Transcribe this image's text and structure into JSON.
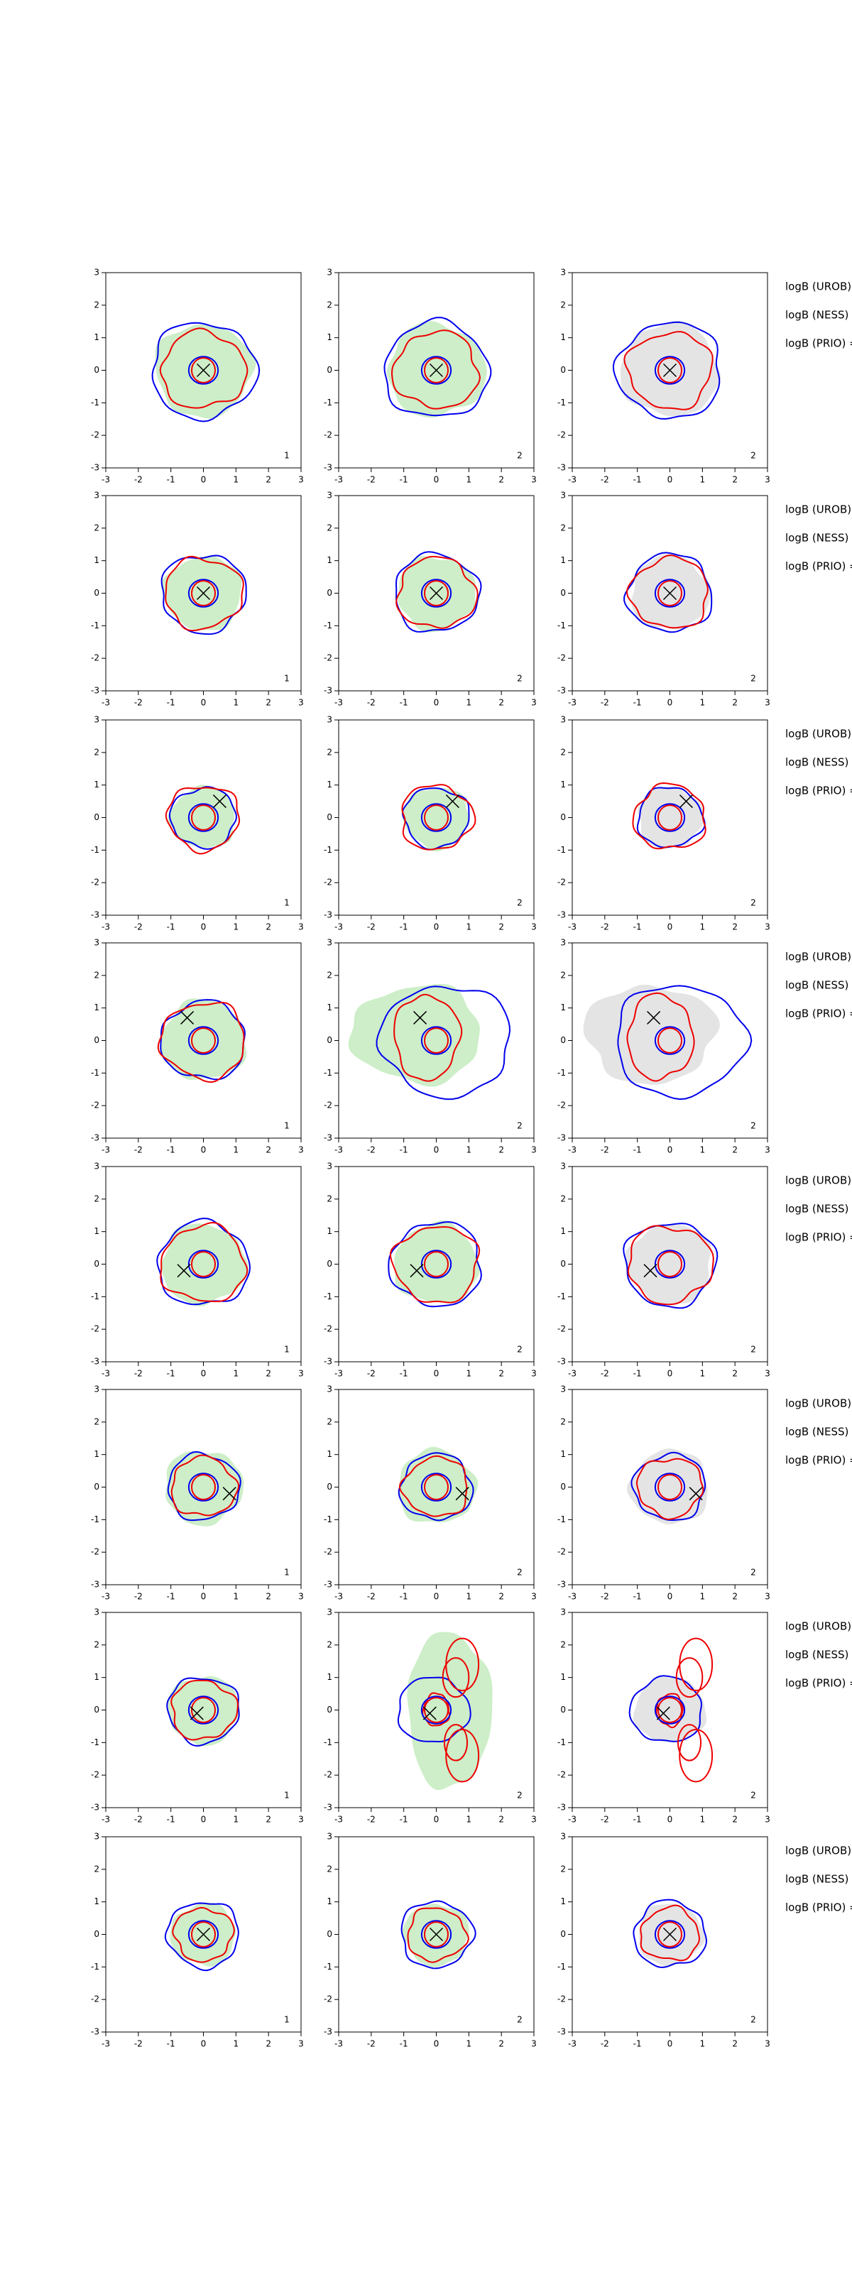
{
  "chart_data": [
    {
      "type": "contour",
      "panel_label": "1",
      "xlim": [
        -3,
        3
      ],
      "ylim": [
        -3,
        3
      ],
      "xticks": [
        -3,
        -2,
        -1,
        0,
        1,
        2,
        3
      ],
      "yticks": [
        -3,
        -2,
        -1,
        0,
        1,
        2,
        3
      ],
      "marker": {
        "x": 0,
        "y": 0
      }
    },
    {
      "type": "contour",
      "panel_label": "2",
      "xlim": [
        -3,
        3
      ],
      "ylim": [
        -3,
        3
      ],
      "xticks": [
        -3,
        -2,
        -1,
        0,
        1,
        2,
        3
      ],
      "yticks": [
        -3,
        -2,
        -1,
        0,
        1,
        2,
        3
      ],
      "marker": {
        "x": 0,
        "y": 0
      }
    },
    {
      "type": "contour",
      "panel_label": "2",
      "xlim": [
        -3,
        3
      ],
      "ylim": [
        -3,
        3
      ],
      "xticks": [
        -3,
        -2,
        -1,
        0,
        1,
        2,
        3
      ],
      "yticks": [
        -3,
        -2,
        -1,
        0,
        1,
        2,
        3
      ],
      "marker": {
        "x": 0,
        "y": 0
      },
      "annotations": [
        "logB (UROB)",
        "logB (NESS) =",
        "logB (PRIO) ="
      ]
    },
    {
      "type": "contour",
      "panel_label": "1",
      "xlim": [
        -3,
        3
      ],
      "ylim": [
        -3,
        3
      ],
      "xticks": [
        -3,
        -2,
        -1,
        0,
        1,
        2,
        3
      ],
      "yticks": [
        -3,
        -2,
        -1,
        0,
        1,
        2,
        3
      ],
      "marker": {
        "x": 0,
        "y": 0
      }
    },
    {
      "type": "contour",
      "panel_label": "2",
      "xlim": [
        -3,
        3
      ],
      "ylim": [
        -3,
        3
      ],
      "xticks": [
        -3,
        -2,
        -1,
        0,
        1,
        2,
        3
      ],
      "yticks": [
        -3,
        -2,
        -1,
        0,
        1,
        2,
        3
      ],
      "marker": {
        "x": 0,
        "y": 0
      }
    },
    {
      "type": "contour",
      "panel_label": "2",
      "xlim": [
        -3,
        3
      ],
      "ylim": [
        -3,
        3
      ],
      "xticks": [
        -3,
        -2,
        -1,
        0,
        1,
        2,
        3
      ],
      "yticks": [
        -3,
        -2,
        -1,
        0,
        1,
        2,
        3
      ],
      "marker": {
        "x": 0,
        "y": 0
      },
      "annotations": [
        "logB (UROB)",
        "logB (NESS) =",
        "logB (PRIO) ="
      ]
    },
    {
      "type": "contour",
      "panel_label": "1",
      "xlim": [
        -3,
        3
      ],
      "ylim": [
        -3,
        3
      ],
      "xticks": [
        -3,
        -2,
        -1,
        0,
        1,
        2,
        3
      ],
      "yticks": [
        -3,
        -2,
        -1,
        0,
        1,
        2,
        3
      ],
      "marker": {
        "x": 0.5,
        "y": 0.5
      }
    },
    {
      "type": "contour",
      "panel_label": "2",
      "xlim": [
        -3,
        3
      ],
      "ylim": [
        -3,
        3
      ],
      "xticks": [
        -3,
        -2,
        -1,
        0,
        1,
        2,
        3
      ],
      "yticks": [
        -3,
        -2,
        -1,
        0,
        1,
        2,
        3
      ],
      "marker": {
        "x": 0.5,
        "y": 0.5
      }
    },
    {
      "type": "contour",
      "panel_label": "2",
      "xlim": [
        -3,
        3
      ],
      "ylim": [
        -3,
        3
      ],
      "xticks": [
        -3,
        -2,
        -1,
        0,
        1,
        2,
        3
      ],
      "yticks": [
        -3,
        -2,
        -1,
        0,
        1,
        2,
        3
      ],
      "marker": {
        "x": 0.5,
        "y": 0.5
      },
      "annotations": [
        "logB (UROB)",
        "logB (NESS) =",
        "logB (PRIO) ="
      ]
    },
    {
      "type": "contour",
      "panel_label": "1",
      "xlim": [
        -3,
        3
      ],
      "ylim": [
        -3,
        3
      ],
      "xticks": [
        -3,
        -2,
        -1,
        0,
        1,
        2,
        3
      ],
      "yticks": [
        -3,
        -2,
        -1,
        0,
        1,
        2,
        3
      ],
      "marker": {
        "x": -0.5,
        "y": 0.7
      }
    },
    {
      "type": "contour",
      "panel_label": "2",
      "xlim": [
        -3,
        3
      ],
      "ylim": [
        -3,
        3
      ],
      "xticks": [
        -3,
        -2,
        -1,
        0,
        1,
        2,
        3
      ],
      "yticks": [
        -3,
        -2,
        -1,
        0,
        1,
        2,
        3
      ],
      "marker": {
        "x": -0.5,
        "y": 0.7
      }
    },
    {
      "type": "contour",
      "panel_label": "2",
      "xlim": [
        -3,
        3
      ],
      "ylim": [
        -3,
        3
      ],
      "xticks": [
        -3,
        -2,
        -1,
        0,
        1,
        2,
        3
      ],
      "yticks": [
        -3,
        -2,
        -1,
        0,
        1,
        2,
        3
      ],
      "marker": {
        "x": -0.5,
        "y": 0.7
      },
      "annotations": [
        "logB (UROB)",
        "logB (NESS) =",
        "logB (PRIO) ="
      ]
    },
    {
      "type": "contour",
      "panel_label": "1",
      "xlim": [
        -3,
        3
      ],
      "ylim": [
        -3,
        3
      ],
      "xticks": [
        -3,
        -2,
        -1,
        0,
        1,
        2,
        3
      ],
      "yticks": [
        -3,
        -2,
        -1,
        0,
        1,
        2,
        3
      ],
      "marker": {
        "x": -0.6,
        "y": -0.2
      }
    },
    {
      "type": "contour",
      "panel_label": "2",
      "xlim": [
        -3,
        3
      ],
      "ylim": [
        -3,
        3
      ],
      "xticks": [
        -3,
        -2,
        -1,
        0,
        1,
        2,
        3
      ],
      "yticks": [
        -3,
        -2,
        -1,
        0,
        1,
        2,
        3
      ],
      "marker": {
        "x": -0.6,
        "y": -0.2
      }
    },
    {
      "type": "contour",
      "panel_label": "2",
      "xlim": [
        -3,
        3
      ],
      "ylim": [
        -3,
        3
      ],
      "xticks": [
        -3,
        -2,
        -1,
        0,
        1,
        2,
        3
      ],
      "yticks": [
        -3,
        -2,
        -1,
        0,
        1,
        2,
        3
      ],
      "marker": {
        "x": -0.6,
        "y": -0.2
      },
      "annotations": [
        "logB (UROB)",
        "logB (NESS) =",
        "logB (PRIO) ="
      ]
    },
    {
      "type": "contour",
      "panel_label": "1",
      "xlim": [
        -3,
        3
      ],
      "ylim": [
        -3,
        3
      ],
      "xticks": [
        -3,
        -2,
        -1,
        0,
        1,
        2,
        3
      ],
      "yticks": [
        -3,
        -2,
        -1,
        0,
        1,
        2,
        3
      ],
      "marker": {
        "x": 0.8,
        "y": -0.2
      }
    },
    {
      "type": "contour",
      "panel_label": "2",
      "xlim": [
        -3,
        3
      ],
      "ylim": [
        -3,
        3
      ],
      "xticks": [
        -3,
        -2,
        -1,
        0,
        1,
        2,
        3
      ],
      "yticks": [
        -3,
        -2,
        -1,
        0,
        1,
        2,
        3
      ],
      "marker": {
        "x": 0.8,
        "y": -0.2
      }
    },
    {
      "type": "contour",
      "panel_label": "2",
      "xlim": [
        -3,
        3
      ],
      "ylim": [
        -3,
        3
      ],
      "xticks": [
        -3,
        -2,
        -1,
        0,
        1,
        2,
        3
      ],
      "yticks": [
        -3,
        -2,
        -1,
        0,
        1,
        2,
        3
      ],
      "marker": {
        "x": 0.8,
        "y": -0.2
      },
      "annotations": [
        "logB (UROB)",
        "logB (NESS) =",
        "logB (PRIO) ="
      ]
    },
    {
      "type": "contour",
      "panel_label": "1",
      "xlim": [
        -3,
        3
      ],
      "ylim": [
        -3,
        3
      ],
      "xticks": [
        -3,
        -2,
        -1,
        0,
        1,
        2,
        3
      ],
      "yticks": [
        -3,
        -2,
        -1,
        0,
        1,
        2,
        3
      ],
      "marker": {
        "x": -0.2,
        "y": -0.1
      }
    },
    {
      "type": "contour",
      "panel_label": "2",
      "xlim": [
        -3,
        3
      ],
      "ylim": [
        -3,
        3
      ],
      "xticks": [
        -3,
        -2,
        -1,
        0,
        1,
        2,
        3
      ],
      "yticks": [
        -3,
        -2,
        -1,
        0,
        1,
        2,
        3
      ],
      "marker": {
        "x": -0.2,
        "y": -0.1
      }
    },
    {
      "type": "contour",
      "panel_label": "2",
      "xlim": [
        -3,
        3
      ],
      "ylim": [
        -3,
        3
      ],
      "xticks": [
        -3,
        -2,
        -1,
        0,
        1,
        2,
        3
      ],
      "yticks": [
        -3,
        -2,
        -1,
        0,
        1,
        2,
        3
      ],
      "marker": {
        "x": -0.2,
        "y": -0.1
      },
      "annotations": [
        "logB (UROB)",
        "logB (NESS) =",
        "logB (PRIO) ="
      ]
    },
    {
      "type": "contour",
      "panel_label": "1",
      "xlim": [
        -3,
        3
      ],
      "ylim": [
        -3,
        3
      ],
      "xticks": [
        -3,
        -2,
        -1,
        0,
        1,
        2,
        3
      ],
      "yticks": [
        -3,
        -2,
        -1,
        0,
        1,
        2,
        3
      ],
      "marker": {
        "x": 0,
        "y": 0
      }
    },
    {
      "type": "contour",
      "panel_label": "2",
      "xlim": [
        -3,
        3
      ],
      "ylim": [
        -3,
        3
      ],
      "xticks": [
        -3,
        -2,
        -1,
        0,
        1,
        2,
        3
      ],
      "yticks": [
        -3,
        -2,
        -1,
        0,
        1,
        2,
        3
      ],
      "marker": {
        "x": 0,
        "y": 0
      }
    },
    {
      "type": "contour",
      "panel_label": "2",
      "xlim": [
        -3,
        3
      ],
      "ylim": [
        -3,
        3
      ],
      "xticks": [
        -3,
        -2,
        -1,
        0,
        1,
        2,
        3
      ],
      "yticks": [
        -3,
        -2,
        -1,
        0,
        1,
        2,
        3
      ],
      "marker": {
        "x": 0,
        "y": 0
      },
      "annotations": [
        "logB (UROB)",
        "logB (NESS) =",
        "logB (PRIO) ="
      ]
    }
  ]
}
